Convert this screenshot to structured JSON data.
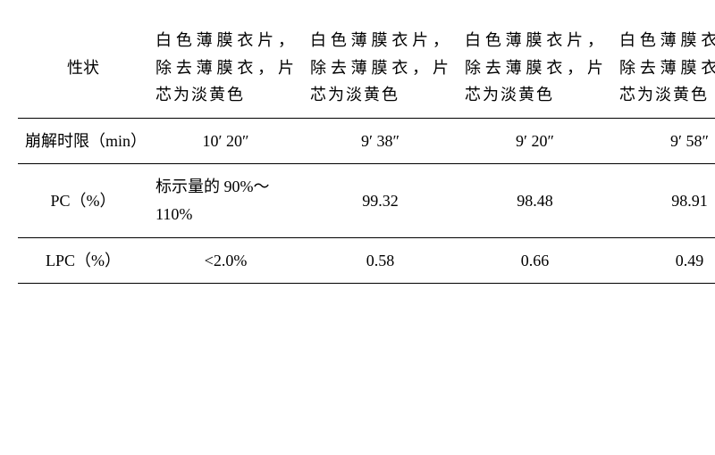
{
  "table": {
    "rows": [
      {
        "label": "性状",
        "cells": [
          "白色薄膜衣片，除去薄膜衣，片芯为淡黄色",
          "白色薄膜衣片，除去薄膜衣，片芯为淡黄色",
          "白色薄膜衣片，除去薄膜衣，片芯为淡黄色",
          "白色薄膜衣片，除去薄膜衣，片芯为淡黄色"
        ]
      },
      {
        "label": "崩解时限（min）",
        "cells": [
          "10′ 20″",
          "9′ 38″",
          "9′ 20″",
          "9′ 58″"
        ]
      },
      {
        "label": "PC（%）",
        "cells": [
          "标示量的 90%～110%",
          "99.32",
          "98.48",
          "98.91"
        ]
      },
      {
        "label": "LPC（%）",
        "cells": [
          "<2.0%",
          "0.58",
          "0.66",
          "0.49"
        ]
      }
    ]
  }
}
